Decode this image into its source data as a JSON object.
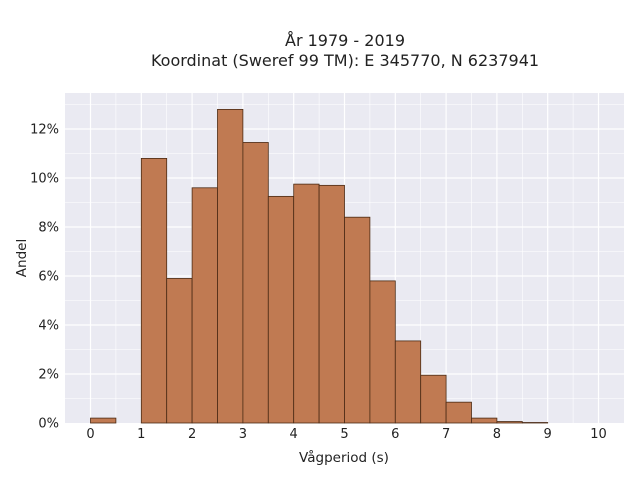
{
  "chart_data": {
    "type": "bar",
    "title_line1": "År 1979 - 2019",
    "title_line2": "Koordinat (Sweref 99 TM): E 345770, N 6237941",
    "xlabel": "Vågperiod (s)",
    "ylabel": "Andel",
    "x_ticks": [
      "0",
      "1",
      "2",
      "3",
      "4",
      "5",
      "6",
      "7",
      "8",
      "9",
      "10"
    ],
    "y_ticks": [
      "0%",
      "2%",
      "4%",
      "6%",
      "8%",
      "10%",
      "12%"
    ],
    "bin_width": 0.5,
    "xlim": [
      -0.5,
      10.5
    ],
    "ylim": [
      0,
      13.2
    ],
    "bins": [
      {
        "x": 0.0,
        "value": 0.2
      },
      {
        "x": 1.0,
        "value": 10.8
      },
      {
        "x": 1.5,
        "value": 5.9
      },
      {
        "x": 2.0,
        "value": 9.6
      },
      {
        "x": 2.5,
        "value": 12.8
      },
      {
        "x": 3.0,
        "value": 11.45
      },
      {
        "x": 3.5,
        "value": 9.25
      },
      {
        "x": 4.0,
        "value": 9.75
      },
      {
        "x": 4.5,
        "value": 9.7
      },
      {
        "x": 5.0,
        "value": 8.4
      },
      {
        "x": 5.5,
        "value": 5.8
      },
      {
        "x": 6.0,
        "value": 3.35
      },
      {
        "x": 6.5,
        "value": 1.95
      },
      {
        "x": 7.0,
        "value": 0.85
      },
      {
        "x": 7.5,
        "value": 0.2
      },
      {
        "x": 8.0,
        "value": 0.06
      },
      {
        "x": 8.5,
        "value": 0.02
      }
    ],
    "grid": true,
    "colors": {
      "bar_fill": "#c07a52",
      "bar_stroke": "#4a2a14",
      "plot_bg": "#eaeaf2",
      "grid": "#ffffff"
    }
  }
}
